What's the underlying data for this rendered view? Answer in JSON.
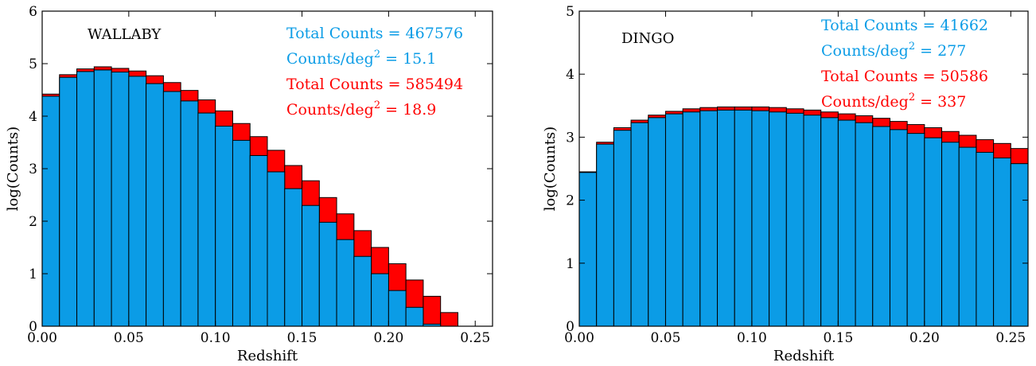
{
  "chart_data": [
    {
      "type": "bar",
      "name": "WALLABY",
      "panel_label": "WALLABY",
      "xlabel": "Redshift",
      "ylabel": "log(Counts)",
      "xlim": [
        0.0,
        0.26
      ],
      "ylim": [
        0,
        6
      ],
      "xticks": [
        "0.00",
        "0.05",
        "0.10",
        "0.15",
        "0.20",
        "0.25"
      ],
      "xtick_values": [
        0.0,
        0.05,
        0.1,
        0.15,
        0.2,
        0.25
      ],
      "yticks": [
        "0",
        "1",
        "2",
        "3",
        "4",
        "5",
        "6"
      ],
      "ytick_values": [
        0,
        1,
        2,
        3,
        4,
        5,
        6
      ],
      "bin_edges": [
        0.0,
        0.01,
        0.02,
        0.03,
        0.04,
        0.05,
        0.06,
        0.07,
        0.08,
        0.09,
        0.1,
        0.11,
        0.12,
        0.13,
        0.14,
        0.15,
        0.16,
        0.17,
        0.18,
        0.19,
        0.2,
        0.21,
        0.22,
        0.23,
        0.24
      ],
      "series": [
        {
          "name": "Total",
          "color": "#ff0000",
          "values": [
            4.42,
            4.79,
            4.9,
            4.94,
            4.91,
            4.86,
            4.77,
            4.64,
            4.49,
            4.31,
            4.1,
            3.86,
            3.61,
            3.35,
            3.06,
            2.77,
            2.45,
            2.14,
            1.82,
            1.5,
            1.19,
            0.88,
            0.57,
            0.26
          ]
        },
        {
          "name": "Blue",
          "color": "#0b9ce6",
          "values": [
            4.38,
            4.74,
            4.85,
            4.88,
            4.84,
            4.76,
            4.62,
            4.47,
            4.29,
            4.06,
            3.81,
            3.54,
            3.25,
            2.94,
            2.62,
            2.3,
            1.98,
            1.65,
            1.33,
            1.0,
            0.68,
            0.36,
            0.04,
            0.0
          ]
        }
      ],
      "annotations": [
        {
          "text": "Total Counts = 467576",
          "color": "#0b9ce6"
        },
        {
          "text_prefix": "Counts/deg",
          "sup": "2",
          "text_suffix": " = 15.1",
          "color": "#0b9ce6"
        },
        {
          "text": "Total Counts = 585494",
          "color": "#ff0000"
        },
        {
          "text_prefix": "Counts/deg",
          "sup": "2",
          "text_suffix": " = 18.9",
          "color": "#ff0000"
        }
      ],
      "grid": false
    },
    {
      "type": "bar",
      "name": "DINGO",
      "panel_label": "DINGO",
      "xlabel": "Redshift",
      "ylabel": "log(Counts)",
      "xlim": [
        0.0,
        0.26
      ],
      "ylim": [
        0,
        5
      ],
      "xticks": [
        "0.00",
        "0.05",
        "0.10",
        "0.15",
        "0.20",
        "0.25"
      ],
      "xtick_values": [
        0.0,
        0.05,
        0.1,
        0.15,
        0.2,
        0.25
      ],
      "yticks": [
        "0",
        "1",
        "2",
        "3",
        "4",
        "5"
      ],
      "ytick_values": [
        0,
        1,
        2,
        3,
        4,
        5
      ],
      "bin_edges": [
        0.0,
        0.01,
        0.02,
        0.03,
        0.04,
        0.05,
        0.06,
        0.07,
        0.08,
        0.09,
        0.1,
        0.11,
        0.12,
        0.13,
        0.14,
        0.15,
        0.16,
        0.17,
        0.18,
        0.19,
        0.2,
        0.21,
        0.22,
        0.23,
        0.24,
        0.25,
        0.26
      ],
      "series": [
        {
          "name": "Total",
          "color": "#ff0000",
          "values": [
            2.45,
            2.92,
            3.15,
            3.27,
            3.35,
            3.41,
            3.45,
            3.47,
            3.48,
            3.48,
            3.48,
            3.47,
            3.45,
            3.43,
            3.4,
            3.37,
            3.34,
            3.3,
            3.25,
            3.2,
            3.15,
            3.09,
            3.03,
            2.96,
            2.9,
            2.82
          ]
        },
        {
          "name": "Blue",
          "color": "#0b9ce6",
          "values": [
            2.44,
            2.89,
            3.11,
            3.23,
            3.31,
            3.37,
            3.4,
            3.42,
            3.43,
            3.43,
            3.42,
            3.4,
            3.38,
            3.35,
            3.31,
            3.27,
            3.23,
            3.17,
            3.12,
            3.06,
            2.99,
            2.92,
            2.84,
            2.76,
            2.67,
            2.58
          ]
        }
      ],
      "annotations": [
        {
          "text": "Total Counts = 41662",
          "color": "#0b9ce6"
        },
        {
          "text_prefix": "Counts/deg",
          "sup": "2",
          "text_suffix": " = 277",
          "color": "#0b9ce6"
        },
        {
          "text": "Total Counts = 50586",
          "color": "#ff0000"
        },
        {
          "text_prefix": "Counts/deg",
          "sup": "2",
          "text_suffix": " = 337",
          "color": "#ff0000"
        }
      ],
      "grid": false
    }
  ]
}
